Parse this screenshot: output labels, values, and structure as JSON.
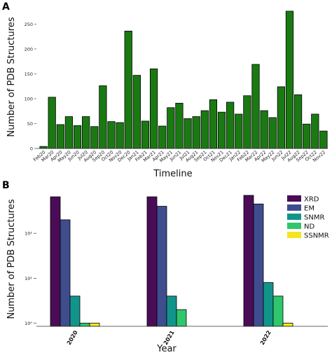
{
  "chart_data": [
    {
      "panel": "A",
      "type": "bar",
      "xlabel": "Timeline",
      "ylabel": "Number of PDB Structures",
      "ylim": [
        0,
        290
      ],
      "yticks": [
        0,
        50,
        100,
        150,
        200,
        250
      ],
      "color": "#1a7a12",
      "categories": [
        "Feb20",
        "Mar20",
        "Apr20",
        "May20",
        "Jun20",
        "Jul20",
        "Aug20",
        "Sep20",
        "Oct20",
        "Nov20",
        "Dec20",
        "Jan21",
        "Feb21",
        "Mar21",
        "Apr21",
        "May21",
        "Jun21",
        "Jul21",
        "Aug21",
        "Sep21",
        "Oct21",
        "Nov21",
        "Dec21",
        "Jan22",
        "Feb22",
        "Mar22",
        "Apr22",
        "May22",
        "Jun22",
        "Jul22",
        "Aug22",
        "Sep22",
        "Oct22",
        "Nov22"
      ],
      "values": [
        4,
        103,
        48,
        64,
        46,
        64,
        44,
        126,
        54,
        52,
        236,
        147,
        55,
        160,
        45,
        82,
        91,
        60,
        64,
        76,
        98,
        73,
        93,
        69,
        106,
        169,
        76,
        62,
        124,
        276,
        108,
        49,
        69,
        35
      ]
    },
    {
      "panel": "B",
      "type": "bar",
      "scale": "log",
      "xlabel": "Year",
      "ylabel": "Number of PDB Structures",
      "ylim": [
        0.85,
        900
      ],
      "yticks": [
        "10⁰",
        "10¹",
        "10²"
      ],
      "categories": [
        "2020",
        "2021",
        "2022"
      ],
      "legend_position": "top-right",
      "series": [
        {
          "name": "XRD",
          "color": "#4b0c57",
          "values": [
            650,
            650,
            700
          ]
        },
        {
          "name": "EM",
          "color": "#3f4d8e",
          "values": [
            200,
            400,
            450
          ]
        },
        {
          "name": "SNMR",
          "color": "#13948a",
          "values": [
            4,
            4,
            8
          ]
        },
        {
          "name": "ND",
          "color": "#2fc66c",
          "values": [
            1,
            2,
            4
          ]
        },
        {
          "name": "SSNMR",
          "color": "#f5e520",
          "values": [
            1,
            0,
            1
          ]
        }
      ]
    }
  ]
}
